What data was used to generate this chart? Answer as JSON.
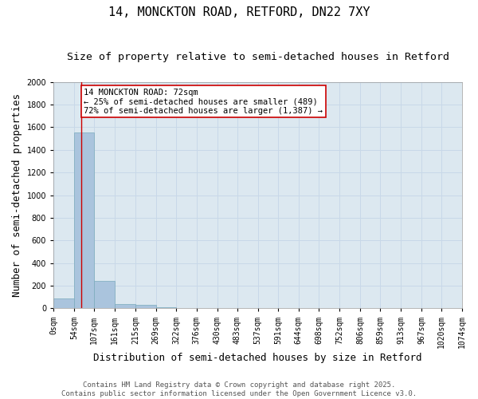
{
  "title_line1": "14, MONCKTON ROAD, RETFORD, DN22 7XY",
  "title_line2": "Size of property relative to semi-detached houses in Retford",
  "xlabel": "Distribution of semi-detached houses by size in Retford",
  "ylabel": "Number of semi-detached properties",
  "bar_values": [
    90,
    1555,
    240,
    40,
    30,
    12,
    0,
    0,
    0,
    0,
    0,
    0,
    0,
    0,
    0,
    0,
    0,
    0,
    0,
    0
  ],
  "bin_edges": [
    0,
    54,
    107,
    161,
    215,
    269,
    322,
    376,
    430,
    483,
    537,
    591,
    644,
    698,
    752,
    806,
    859,
    913,
    967,
    1020,
    1074
  ],
  "bin_labels": [
    "0sqm",
    "54sqm",
    "107sqm",
    "161sqm",
    "215sqm",
    "269sqm",
    "322sqm",
    "376sqm",
    "430sqm",
    "483sqm",
    "537sqm",
    "591sqm",
    "644sqm",
    "698sqm",
    "752sqm",
    "806sqm",
    "859sqm",
    "913sqm",
    "967sqm",
    "1020sqm",
    "1074sqm"
  ],
  "bar_color": "#aac4dd",
  "bar_edge_color": "#7aaabb",
  "grid_color": "#c8d8e8",
  "background_color": "#dce8f0",
  "property_line_x": 72,
  "property_line_color": "#cc0000",
  "annotation_text": "14 MONCKTON ROAD: 72sqm\n← 25% of semi-detached houses are smaller (489)\n72% of semi-detached houses are larger (1,387) →",
  "annotation_box_color": "#cc0000",
  "ylim": [
    0,
    2000
  ],
  "yticks": [
    0,
    200,
    400,
    600,
    800,
    1000,
    1200,
    1400,
    1600,
    1800,
    2000
  ],
  "footer_text": "Contains HM Land Registry data © Crown copyright and database right 2025.\nContains public sector information licensed under the Open Government Licence v3.0.",
  "title_fontsize": 11,
  "subtitle_fontsize": 9.5,
  "axis_label_fontsize": 9,
  "tick_fontsize": 7,
  "annotation_fontsize": 7.5,
  "footer_fontsize": 6.5
}
